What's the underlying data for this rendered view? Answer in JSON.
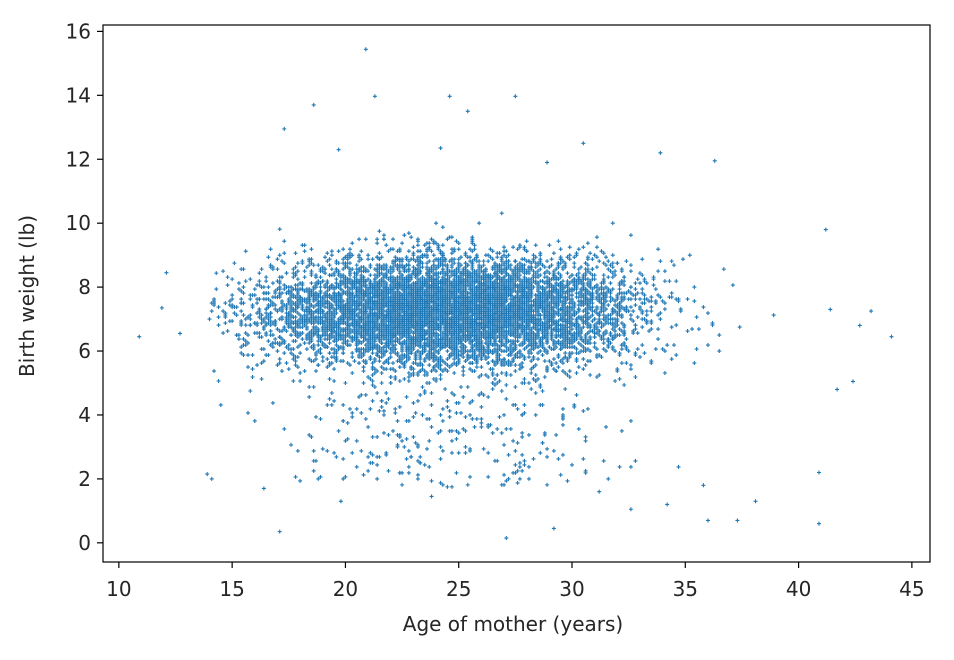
{
  "chart_data": {
    "type": "scatter",
    "title": "",
    "xlabel": "Age of mother (years)",
    "ylabel": "Birth weight (lb)",
    "xlim": [
      9.3,
      45.8
    ],
    "ylim": [
      -0.6,
      16.2
    ],
    "xticks": [
      10,
      15,
      20,
      25,
      30,
      35,
      40,
      45
    ],
    "yticks": [
      0,
      2,
      4,
      6,
      8,
      10,
      12,
      14,
      16
    ],
    "grid": false,
    "legend": "none",
    "marker": "+",
    "color": "#1f77b4",
    "series": [
      {
        "points": [
          [
            20.9,
            15.44
          ],
          [
            21.3,
            13.97
          ],
          [
            24.6,
            13.97
          ],
          [
            25.4,
            13.5
          ],
          [
            27.5,
            13.97
          ],
          [
            18.6,
            13.7
          ],
          [
            17.3,
            12.95
          ],
          [
            19.7,
            12.3
          ],
          [
            24.2,
            12.35
          ],
          [
            30.5,
            12.5
          ],
          [
            33.9,
            12.2
          ],
          [
            36.3,
            11.95
          ],
          [
            28.9,
            11.9
          ],
          [
            12.1,
            8.45
          ],
          [
            10.9,
            6.45
          ],
          [
            11.9,
            7.35
          ],
          [
            12.7,
            6.55
          ],
          [
            44.1,
            6.45
          ],
          [
            42.7,
            6.8
          ],
          [
            42.4,
            5.05
          ],
          [
            43.2,
            7.25
          ],
          [
            41.7,
            4.8
          ],
          [
            41.2,
            9.8
          ],
          [
            41.4,
            7.3
          ],
          [
            40.9,
            0.6
          ],
          [
            40.9,
            2.2
          ],
          [
            13.9,
            2.15
          ],
          [
            14.1,
            2.0
          ],
          [
            17.1,
            0.35
          ],
          [
            27.1,
            0.15
          ],
          [
            29.2,
            0.45
          ],
          [
            36.0,
            0.7
          ],
          [
            37.3,
            0.7
          ],
          [
            34.2,
            1.2
          ],
          [
            35.8,
            1.8
          ],
          [
            38.1,
            1.3
          ],
          [
            16.4,
            1.7
          ],
          [
            19.8,
            1.3
          ],
          [
            23.8,
            1.45
          ],
          [
            31.2,
            1.6
          ],
          [
            32.6,
            1.05
          ]
        ]
      }
    ]
  }
}
